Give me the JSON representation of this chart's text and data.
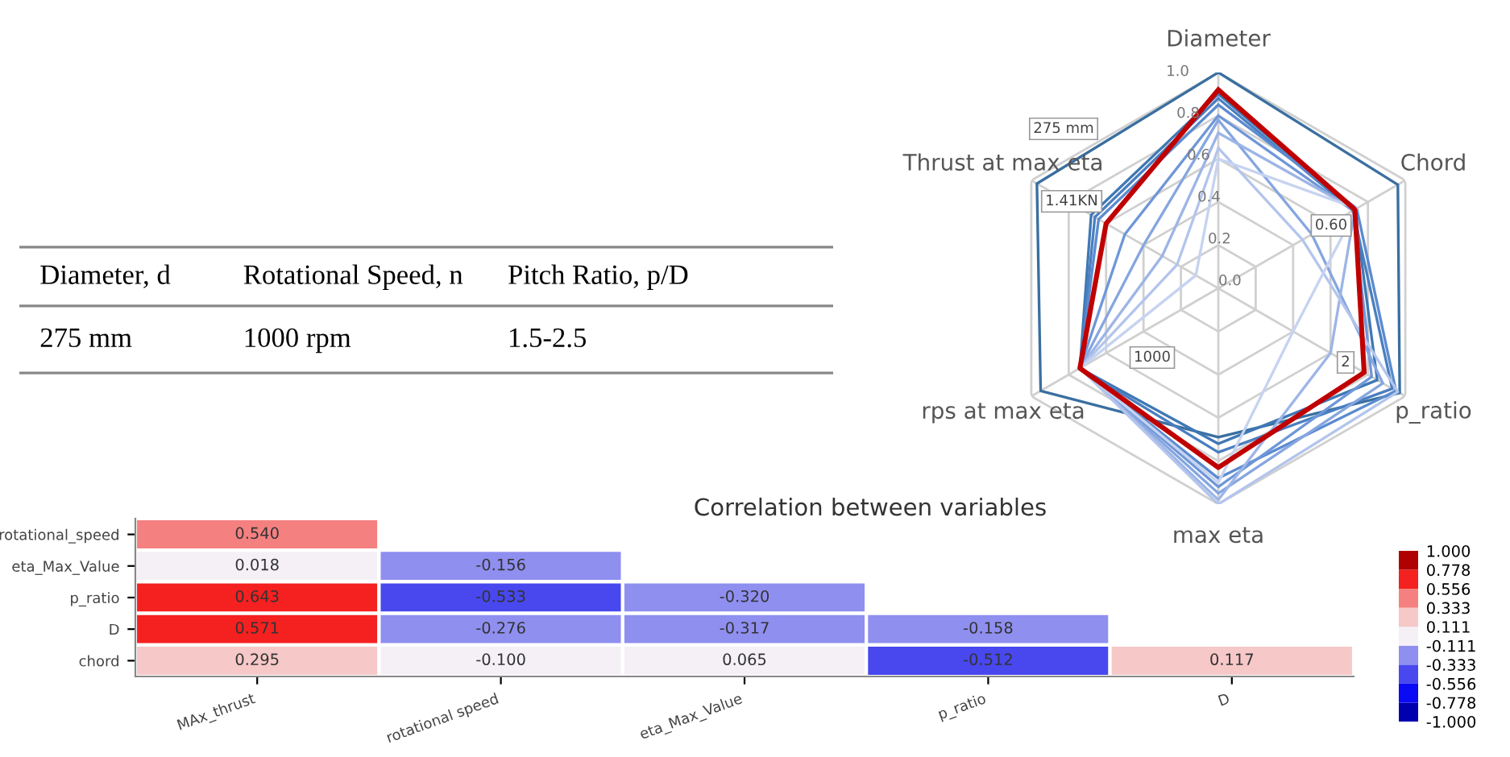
{
  "chart_data": [
    {
      "type": "radar",
      "categories": [
        "Diameter",
        "Chord",
        "p_ratio",
        "max eta",
        "rps at max eta",
        "Thrust at max eta"
      ],
      "ylim": [
        0,
        1
      ],
      "yticks": [
        {
          "value": 0,
          "label": "0.0"
        },
        0.2,
        0.4,
        {
          "value": 0.6,
          "label": "0.6"
        },
        0.8,
        {
          "value": 1,
          "label": "1.0"
        }
      ],
      "annotations": [
        "275 mm",
        "0.60",
        "2",
        "1000",
        "1.41KN"
      ],
      "series": [
        {
          "color": "#3a6fa0",
          "values": [
            1.0,
            0.96,
            0.97,
            0.69,
            0.95,
            0.97
          ]
        },
        {
          "color": "#3f78b5",
          "values": [
            0.9,
            0.73,
            0.85,
            0.72,
            0.74,
            0.68
          ]
        },
        {
          "color": "#4a7fc0",
          "values": [
            0.88,
            0.72,
            0.93,
            0.76,
            0.74,
            0.66
          ]
        },
        {
          "color": "#5b8bd0",
          "values": [
            0.85,
            0.74,
            0.95,
            0.88,
            0.74,
            0.64
          ]
        },
        {
          "color": "#6f97d8",
          "values": [
            0.8,
            0.72,
            0.82,
            0.92,
            0.74,
            0.5
          ]
        },
        {
          "color": "#86a6e0",
          "values": [
            0.78,
            0.5,
            0.88,
            0.95,
            0.74,
            0.4
          ]
        },
        {
          "color": "#9db5e6",
          "values": [
            0.72,
            0.73,
            0.6,
            0.98,
            0.74,
            0.3
          ]
        },
        {
          "color": "#b3c5ec",
          "values": [
            0.65,
            0.45,
            0.96,
            1.0,
            0.74,
            0.22
          ]
        },
        {
          "color": "#c6d3f0",
          "values": [
            0.6,
            0.74,
            0.4,
            0.9,
            0.74,
            0.12
          ]
        },
        {
          "color": "#c00000",
          "values": [
            0.92,
            0.73,
            0.78,
            0.83,
            0.74,
            0.6
          ]
        }
      ]
    },
    {
      "type": "other",
      "categories": [
        "Diameter, d",
        "Rotational Speed, n",
        "Pitch Ratio, p/D"
      ],
      "annotations": [
        "275 mm",
        "1000 rpm",
        "1.5-2.5"
      ]
    },
    {
      "type": "heatmap",
      "title": "Correlation between variables",
      "categories": [
        "MAx_thrust",
        "rotational speed",
        "eta_Max_Value",
        "p_ratio",
        "D"
      ],
      "y_categories": [
        "rotational_speed",
        "eta_Max_Value",
        "p_ratio",
        "D",
        "chord"
      ],
      "cells": [
        [
          0.54,
          null,
          null,
          null,
          null
        ],
        [
          0.018,
          -0.156,
          null,
          null,
          null
        ],
        [
          0.643,
          -0.533,
          -0.32,
          null,
          null
        ],
        [
          0.571,
          -0.276,
          -0.317,
          -0.158,
          null
        ],
        [
          0.295,
          -0.1,
          0.065,
          -0.512,
          0.117
        ]
      ],
      "cell_labels": [
        [
          "0.540",
          null,
          null,
          null,
          null
        ],
        [
          "0.018",
          "-0.156",
          null,
          null,
          null
        ],
        [
          "0.643",
          "-0.533",
          "-0.320",
          null,
          null
        ],
        [
          "0.571",
          "-0.276",
          "-0.317",
          "-0.158",
          null
        ],
        [
          "0.295",
          "-0.100",
          "0.065",
          "-0.512",
          "0.117"
        ]
      ],
      "clim": [
        -1,
        1
      ],
      "cticks": [
        {
          "value": -1,
          "label": "-1.000"
        },
        -0.778,
        -0.556,
        -0.333,
        -0.111,
        0.111,
        0.333,
        0.556,
        0.778,
        {
          "value": 1,
          "label": "1.000"
        }
      ]
    }
  ]
}
